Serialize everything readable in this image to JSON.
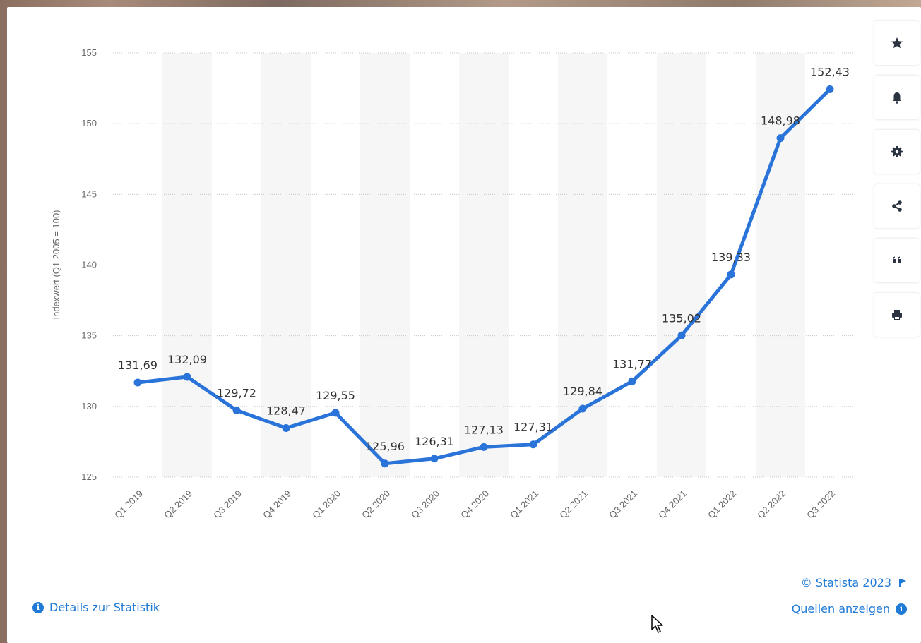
{
  "chart_data": {
    "type": "line",
    "ylabel": "Indexwert (Q1 2005 = 100)",
    "ylim": [
      125,
      155
    ],
    "yticks": [
      "125",
      "130",
      "135",
      "140",
      "145",
      "150",
      "155"
    ],
    "categories": [
      "Q1 2019",
      "Q2 2019",
      "Q3 2019",
      "Q4 2019",
      "Q1 2020",
      "Q2 2020",
      "Q3 2020",
      "Q4 2020",
      "Q1 2021",
      "Q2 2021",
      "Q3 2021",
      "Q4 2021",
      "Q1 2022",
      "Q2 2022",
      "Q3 2022"
    ],
    "values": [
      131.69,
      132.09,
      129.72,
      128.47,
      129.55,
      125.96,
      126.31,
      127.13,
      127.31,
      129.84,
      131.77,
      135.02,
      139.33,
      148.98,
      152.43
    ],
    "data_labels": [
      "131,69",
      "132,09",
      "129,72",
      "128,47",
      "129,55",
      "125,96",
      "126,31",
      "127,13",
      "127,31",
      "129,84",
      "131,77",
      "135,02",
      "139,33",
      "148,98",
      "152,43"
    ],
    "grid": true,
    "line_color": "#2a73d9"
  },
  "toolbar": {
    "icons": [
      "star-icon",
      "bell-icon",
      "gear-icon",
      "share-icon",
      "quote-icon",
      "print-icon"
    ]
  },
  "footer": {
    "details_label": "Details zur Statistik",
    "copyright": "© Statista 2023",
    "sources_label": "Quellen anzeigen"
  },
  "colors": {
    "accent": "#1f7ad6",
    "label": "#333333",
    "axis": "#666666"
  }
}
